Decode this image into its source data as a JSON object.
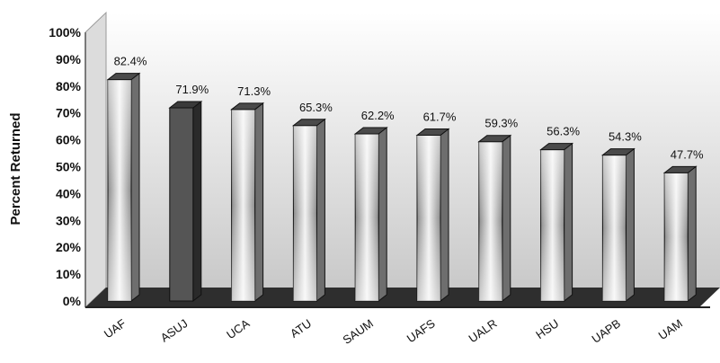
{
  "chart_data": {
    "type": "bar",
    "title": "",
    "xlabel": "",
    "ylabel": "Percent Returned",
    "ylim": [
      0,
      100
    ],
    "yticks": [
      "0%",
      "10%",
      "20%",
      "30%",
      "40%",
      "50%",
      "60%",
      "70%",
      "80%",
      "90%",
      "100%"
    ],
    "categories": [
      "UAF",
      "ASUJ",
      "UCA",
      "ATU",
      "SAUM",
      "UAFS",
      "UALR",
      "HSU",
      "UAPB",
      "UAM"
    ],
    "values": [
      82.4,
      71.9,
      71.3,
      65.3,
      62.2,
      61.7,
      59.3,
      56.3,
      54.3,
      47.7
    ],
    "data_labels": [
      "82.4%",
      "71.9%",
      "71.3%",
      "65.3%",
      "62.2%",
      "61.7%",
      "59.3%",
      "56.3%",
      "54.3%",
      "47.7%"
    ],
    "highlighted_category": "ASUJ",
    "colors": {
      "bar": "#f2f2f2",
      "bar_shade": "#8c8c8c",
      "highlight_bar": "#555555",
      "back_wall_top": "#ffffff",
      "back_wall_bottom": "#c9c9c9",
      "floor": "#2e2e2e"
    },
    "grid": false,
    "legend": "none"
  }
}
